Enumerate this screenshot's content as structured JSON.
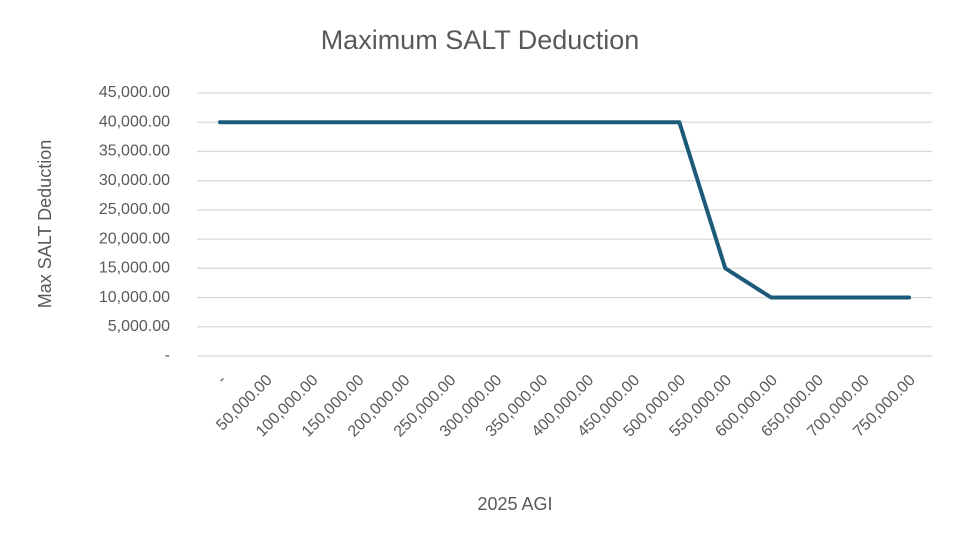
{
  "chart_data": {
    "type": "line",
    "title": "Maximum SALT Deduction",
    "x_label": "2025 AGI",
    "y_label": "Max SALT  Deduction",
    "categories": [
      "-",
      "50,000.00",
      "100,000.00",
      "150,000.00",
      "200,000.00",
      "250,000.00",
      "300,000.00",
      "350,000.00",
      "400,000.00",
      "450,000.00",
      "500,000.00",
      "550,000.00",
      "600,000.00",
      "650,000.00",
      "700,000.00",
      "750,000.00"
    ],
    "values": [
      40000,
      40000,
      40000,
      40000,
      40000,
      40000,
      40000,
      40000,
      40000,
      40000,
      40000,
      15000,
      10000,
      10000,
      10000,
      10000
    ],
    "color": "#1b5a78",
    "ylim": [
      0,
      45000
    ],
    "yticks": [
      {
        "value": 0,
        "label": "-"
      },
      {
        "value": 5000,
        "label": "5,000.00"
      },
      {
        "value": 10000,
        "label": "10,000.00"
      },
      {
        "value": 15000,
        "label": "15,000.00"
      },
      {
        "value": 20000,
        "label": "20,000.00"
      },
      {
        "value": 25000,
        "label": "25,000.00"
      },
      {
        "value": 30000,
        "label": "30,000.00"
      },
      {
        "value": 35000,
        "label": "35,000.00"
      },
      {
        "value": 40000,
        "label": "40,000.00"
      },
      {
        "value": 45000,
        "label": "45,000.00"
      }
    ],
    "grid": true
  }
}
